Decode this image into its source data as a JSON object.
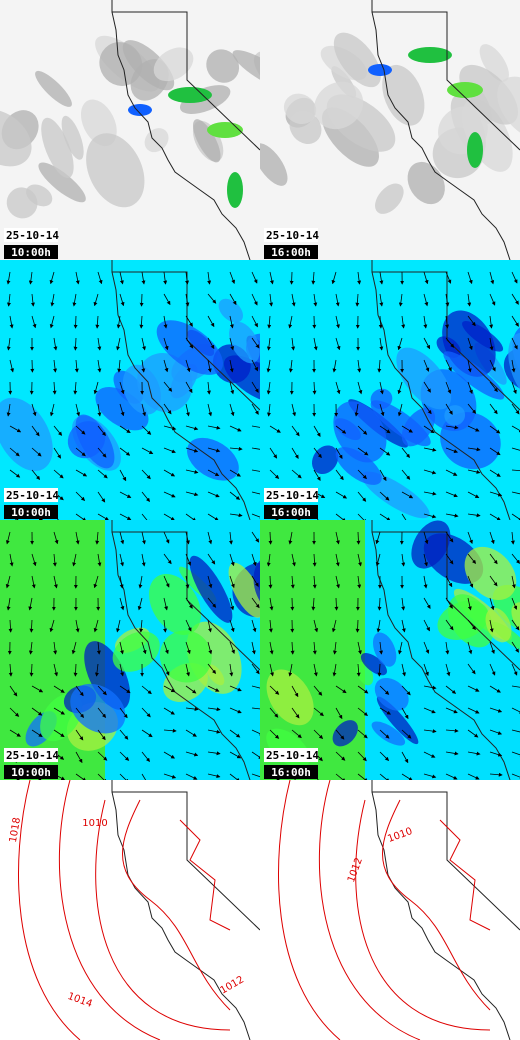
{
  "panels": [
    {
      "date": "25-10-14",
      "time": "10:00h"
    },
    {
      "date": "25-10-14",
      "time": "16:00h"
    },
    {
      "date": "25-10-14",
      "time": "10:00h"
    },
    {
      "date": "25-10-14",
      "time": "16:00h"
    },
    {
      "date": "25-10-14",
      "time": "10:00h"
    },
    {
      "date": "25-10-14",
      "time": "16:00h"
    }
  ],
  "contours": [
    {
      "labels": [
        "1018",
        "1010",
        "1014",
        "1012"
      ]
    },
    {
      "labels": [
        "1012",
        "1010"
      ]
    }
  ]
}
